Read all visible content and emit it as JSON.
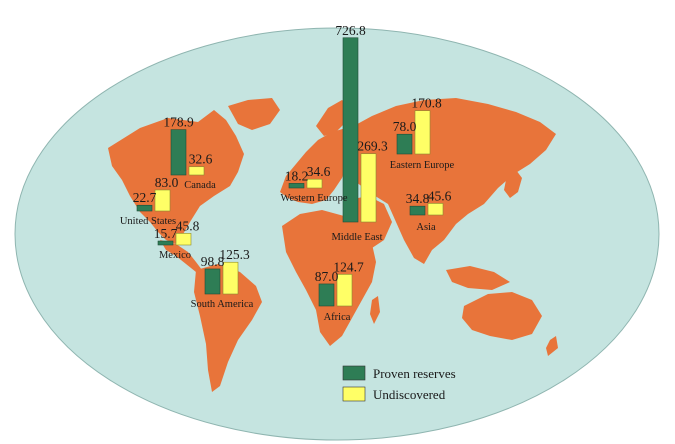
{
  "chart_data": {
    "type": "bar",
    "title": "",
    "series": [
      {
        "name": "Proven reserves",
        "color": "#2e7d55"
      },
      {
        "name": "Undiscovered",
        "color": "#ffff66"
      }
    ],
    "regions": [
      {
        "key": "canada",
        "name": "Canada",
        "proven": 178.9,
        "proven_label": "178.9",
        "undiscovered": 32.6,
        "undiscovered_label": "32.6"
      },
      {
        "key": "united-states",
        "name": "United States",
        "proven": 22.7,
        "proven_label": "22.7",
        "undiscovered": 83.0,
        "undiscovered_label": "83.0"
      },
      {
        "key": "mexico",
        "name": "Mexico",
        "proven": 15.7,
        "proven_label": "15.7",
        "undiscovered": 45.8,
        "undiscovered_label": "45.8"
      },
      {
        "key": "south-america",
        "name": "South America",
        "proven": 98.8,
        "proven_label": "98.8",
        "undiscovered": 125.3,
        "undiscovered_label": "125.3"
      },
      {
        "key": "western-europe",
        "name": "Western Europe",
        "proven": 18.2,
        "proven_label": "18.2",
        "undiscovered": 34.6,
        "undiscovered_label": "34.6"
      },
      {
        "key": "middle-east",
        "name": "Middle East",
        "proven": 726.8,
        "proven_label": "726.8",
        "undiscovered": 269.3,
        "undiscovered_label": "269.3"
      },
      {
        "key": "eastern-europe",
        "name": "Eastern Europe",
        "proven": 78.0,
        "proven_label": "78.0",
        "undiscovered": 170.8,
        "undiscovered_label": "170.8"
      },
      {
        "key": "asia",
        "name": "Asia",
        "proven": 34.8,
        "proven_label": "34.8",
        "undiscovered": 45.6,
        "undiscovered_label": "45.6"
      },
      {
        "key": "africa",
        "name": "Africa",
        "proven": 87.0,
        "proven_label": "87.0",
        "undiscovered": 124.7,
        "undiscovered_label": "124.7"
      }
    ],
    "legend_position": "bottom-center"
  },
  "colors": {
    "ocean": "#c5e4e0",
    "land": "#e8743a",
    "proven": "#2e7d55",
    "undiscovered": "#ffff66"
  }
}
